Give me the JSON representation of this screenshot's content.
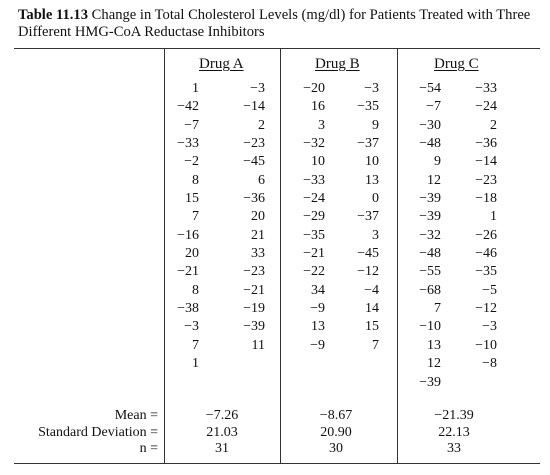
{
  "caption": {
    "label": "Table 11.13",
    "text": " Change in Total Cholesterol Levels (mg/dl) for Patients Treated with Three Different HMG-CoA Reductase Inhibitors"
  },
  "drugs": {
    "a": {
      "header": "Drug A",
      "col1": [
        "1",
        "−42",
        "−7",
        "−33",
        "−2",
        "8",
        "15",
        "7",
        "−16",
        "20",
        "−21",
        "8",
        "−38",
        "−3",
        "7",
        "1"
      ],
      "col2": [
        "−3",
        "−14",
        "2",
        "−23",
        "−45",
        "6",
        "−36",
        "20",
        "21",
        "33",
        "−23",
        "−21",
        "−19",
        "−39",
        "11"
      ],
      "mean": "−7.26",
      "sd": "21.03",
      "n": "31"
    },
    "b": {
      "header": "Drug B",
      "col1": [
        "−20",
        "16",
        "3",
        "−32",
        "10",
        "−33",
        "−24",
        "−29",
        "−35",
        "−21",
        "−22",
        "34",
        "−9",
        "13",
        "−9"
      ],
      "col2": [
        "−3",
        "−35",
        "9",
        "−37",
        "10",
        "13",
        "0",
        "−37",
        "3",
        "−45",
        "−12",
        "−4",
        "14",
        "15",
        "7"
      ],
      "mean": "−8.67",
      "sd": "20.90",
      "n": "30"
    },
    "c": {
      "header": "Drug C",
      "col1": [
        "−54",
        "−7",
        "−30",
        "−48",
        "9",
        "12",
        "−39",
        "−39",
        "−32",
        "−48",
        "−55",
        "−68",
        "7",
        "−10",
        "13",
        "12",
        "−39"
      ],
      "col2": [
        "−33",
        "−24",
        "2",
        "−36",
        "−14",
        "−23",
        "−18",
        "1",
        "−26",
        "−46",
        "−35",
        "−5",
        "−12",
        "−3",
        "−10",
        "−8"
      ],
      "mean": "−21.39",
      "sd": "22.13",
      "n": "33"
    }
  },
  "stats": {
    "mean_label": "Mean =",
    "sd_label": "Standard Deviation =",
    "n_label": "n ="
  }
}
